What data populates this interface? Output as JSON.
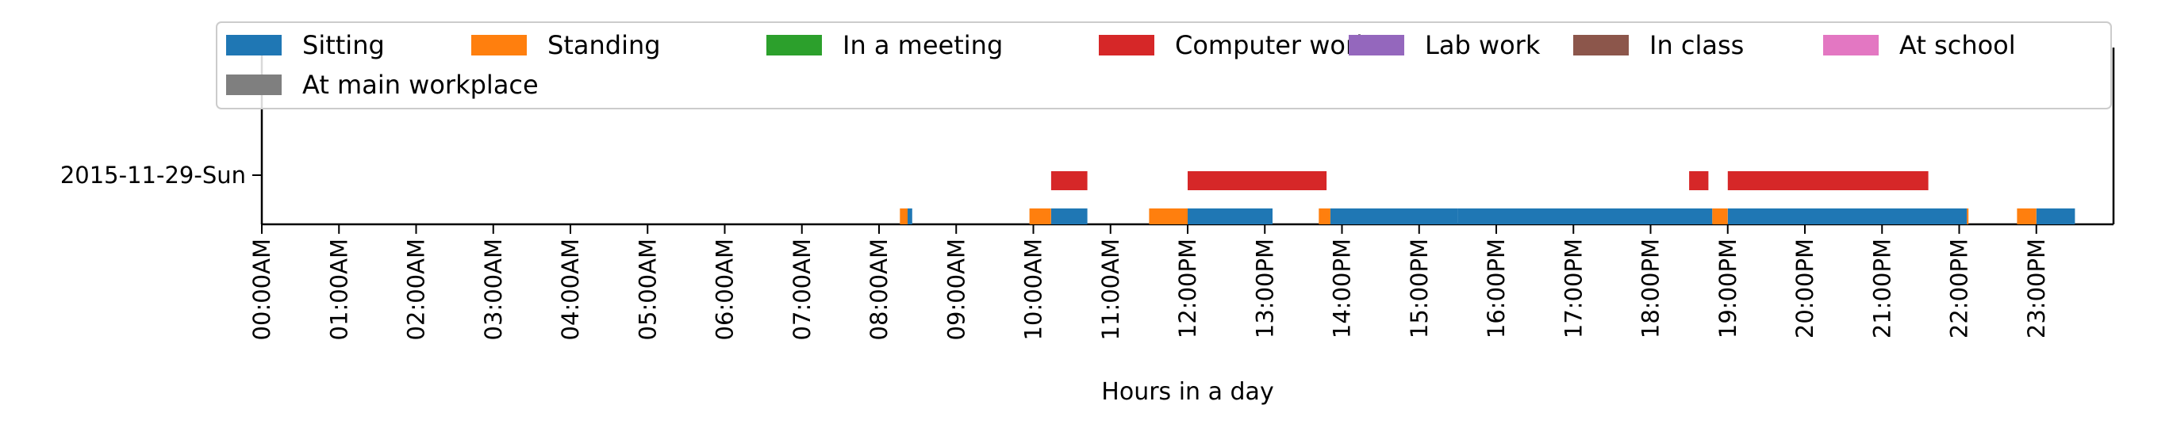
{
  "chart_data": {
    "type": "timeline",
    "xlabel": "Hours in a day",
    "ylabel": "",
    "title": "",
    "xlim": [
      0,
      24
    ],
    "x_unit": "hours",
    "x_ticks": [
      0,
      1,
      2,
      3,
      4,
      5,
      6,
      7,
      8,
      9,
      10,
      11,
      12,
      13,
      14,
      15,
      16,
      17,
      18,
      19,
      20,
      21,
      22,
      23
    ],
    "x_tick_labels": [
      "00:00AM",
      "01:00AM",
      "02:00AM",
      "03:00AM",
      "04:00AM",
      "05:00AM",
      "06:00AM",
      "07:00AM",
      "08:00AM",
      "09:00AM",
      "10:00AM",
      "11:00AM",
      "12:00PM",
      "13:00PM",
      "14:00PM",
      "15:00PM",
      "16:00PM",
      "17:00PM",
      "18:00PM",
      "19:00PM",
      "20:00PM",
      "21:00PM",
      "22:00PM",
      "23:00PM"
    ],
    "y_tick_labels": [
      "2015-11-29-Sun"
    ],
    "legend_position": "top",
    "series": [
      {
        "name": "Sitting",
        "color": "#1f77b4",
        "lane": "lower",
        "intervals": [
          [
            8.37,
            8.43
          ],
          [
            10.23,
            10.7
          ],
          [
            12.0,
            13.1
          ],
          [
            13.85,
            15.5
          ],
          [
            15.5,
            18.8
          ],
          [
            19.0,
            22.1
          ],
          [
            23.0,
            23.5
          ]
        ]
      },
      {
        "name": "Standing",
        "color": "#ff7f0e",
        "lane": "lower",
        "intervals": [
          [
            8.27,
            8.37
          ],
          [
            9.95,
            10.23
          ],
          [
            11.5,
            12.0
          ],
          [
            13.7,
            13.85
          ],
          [
            18.8,
            19.0
          ],
          [
            22.1,
            22.12
          ],
          [
            22.75,
            23.0
          ]
        ]
      },
      {
        "name": "In a meeting",
        "color": "#2ca02c",
        "lane": "upper",
        "intervals": []
      },
      {
        "name": "Computer work",
        "color": "#d62728",
        "lane": "upper",
        "intervals": [
          [
            10.23,
            10.7
          ],
          [
            12.0,
            13.8
          ],
          [
            18.5,
            18.75
          ],
          [
            19.0,
            21.6
          ]
        ]
      },
      {
        "name": "Lab work",
        "color": "#9467bd",
        "lane": "upper",
        "intervals": []
      },
      {
        "name": "In class",
        "color": "#8c564b",
        "lane": "upper",
        "intervals": []
      },
      {
        "name": "At school",
        "color": "#e377c2",
        "lane": "upper",
        "intervals": []
      },
      {
        "name": "At main workplace",
        "color": "#7f7f7f",
        "lane": "upper",
        "intervals": []
      }
    ]
  }
}
